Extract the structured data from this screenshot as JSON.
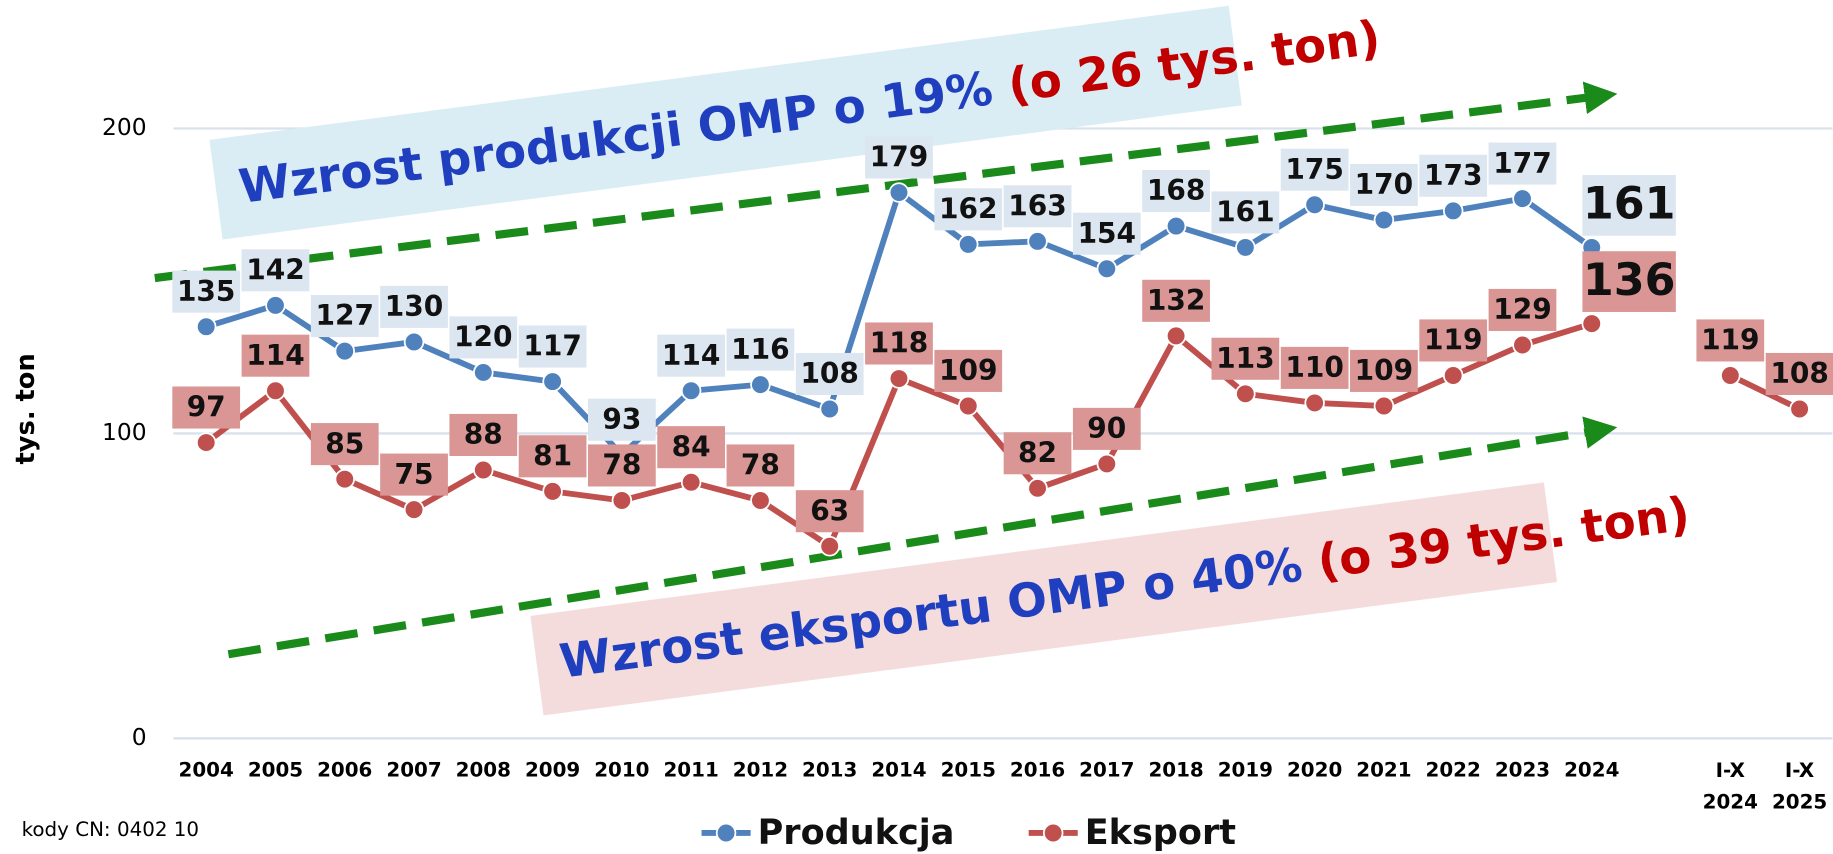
{
  "chart_data": {
    "type": "line",
    "y_label": "tys. ton",
    "categories": [
      "2004",
      "2005",
      "2006",
      "2007",
      "2008",
      "2009",
      "2010",
      "2011",
      "2012",
      "2013",
      "2014",
      "2015",
      "2016",
      "2017",
      "2018",
      "2019",
      "2020",
      "2021",
      "2022",
      "2023",
      "2024",
      null,
      "I-X\n2024",
      "I-X\n2025"
    ],
    "series": [
      {
        "name": "Produkcja",
        "color": "#4f81bd",
        "label_bg": "#dce6f1",
        "values": [
          135,
          142,
          127,
          130,
          120,
          117,
          93,
          114,
          116,
          108,
          179,
          162,
          163,
          154,
          168,
          161,
          175,
          170,
          173,
          177,
          161,
          null,
          null,
          null
        ]
      },
      {
        "name": "Eksport",
        "color": "#c0504d",
        "label_bg": "#d99694",
        "values": [
          97,
          114,
          85,
          75,
          88,
          81,
          78,
          84,
          78,
          63,
          118,
          109,
          82,
          90,
          132,
          113,
          110,
          109,
          119,
          129,
          136,
          null,
          119,
          108
        ]
      }
    ],
    "ylim": [
      0,
      200
    ],
    "yticks": [
      0,
      100,
      200
    ],
    "grid": true,
    "legend": "bottom",
    "annotations": [
      {
        "text": "Wzrost produkcji OMP o 19%",
        "highlight": "(o 26 tys. ton)"
      },
      {
        "text": "Wzrost eksportu OMP o 40%",
        "highlight": "(o 39  tys. ton)"
      }
    ],
    "footnote": "kody CN: 0402 10"
  }
}
